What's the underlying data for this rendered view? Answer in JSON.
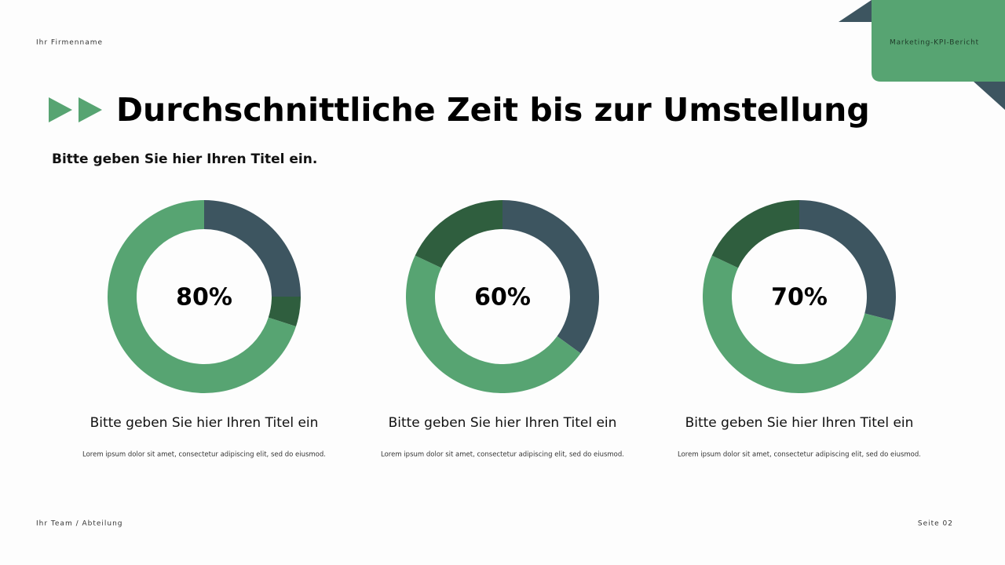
{
  "header": {
    "company": "Ihr Firmenname",
    "report": "Marketing-KPI-Bericht"
  },
  "title": "Durchschnittliche Zeit bis zur Umstellung",
  "subtitle": "Bitte geben Sie hier Ihren Titel ein.",
  "chart_data": [
    {
      "type": "donut",
      "center_label": "80%",
      "values": [
        25,
        5,
        70
      ],
      "colors": [
        "#3d5560",
        "#2f5e3e",
        "#57a472"
      ],
      "caption_title": "Bitte geben Sie hier Ihren Titel ein",
      "caption_text": "Lorem ipsum dolor sit amet, consectetur adipiscing elit, sed do eiusmod."
    },
    {
      "type": "donut",
      "center_label": "60%",
      "values": [
        35,
        47,
        18
      ],
      "colors": [
        "#3d5560",
        "#57a472",
        "#2f5e3e"
      ],
      "caption_title": "Bitte geben Sie hier Ihren Titel ein",
      "caption_text": "Lorem ipsum dolor sit amet, consectetur adipiscing elit, sed do eiusmod."
    },
    {
      "type": "donut",
      "center_label": "70%",
      "values": [
        29,
        53,
        18
      ],
      "colors": [
        "#3d5560",
        "#57a472",
        "#2f5e3e"
      ],
      "caption_title": "Bitte geben Sie hier Ihren Titel ein",
      "caption_text": "Lorem ipsum dolor sit amet, consectetur adipiscing elit, sed do eiusmod."
    }
  ],
  "footer": {
    "team": "Ihr Team / Abteilung",
    "page": "Seite 02"
  }
}
